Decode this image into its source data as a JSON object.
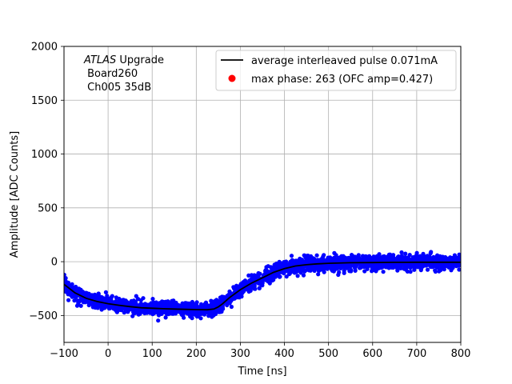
{
  "chart_data": {
    "type": "scatter",
    "xlabel": "Time [ns]",
    "ylabel": "Amplitude [ADC Counts]",
    "xlim": [
      -100,
      800
    ],
    "ylim": [
      -750,
      2000
    ],
    "x_ticks": [
      -100,
      0,
      100,
      200,
      300,
      400,
      500,
      600,
      700,
      800
    ],
    "y_ticks": [
      -500,
      0,
      500,
      1000,
      1500,
      2000
    ],
    "grid": true,
    "legend_placement": "top-right",
    "annotation": {
      "italic": "ATLAS",
      "line1_rest": " Upgrade",
      "line2": " Board260",
      "line3": " Ch005 35dB"
    },
    "series": [
      {
        "name": "average interleaved pulse 0.071mA",
        "kind": "line",
        "color": "#000000",
        "x": [
          -100,
          -75,
          -50,
          -25,
          0,
          25,
          50,
          75,
          100,
          125,
          150,
          175,
          200,
          225,
          240,
          250,
          260,
          275,
          300,
          325,
          350,
          375,
          400,
          425,
          450,
          475,
          500,
          550,
          600,
          650,
          700,
          750,
          800
        ],
        "y": [
          -210,
          -290,
          -340,
          -370,
          -390,
          -405,
          -418,
          -428,
          -433,
          -437,
          -440,
          -443,
          -445,
          -447,
          -440,
          -420,
          -390,
          -335,
          -260,
          -200,
          -150,
          -100,
          -65,
          -40,
          -28,
          -20,
          -15,
          -10,
          -8,
          -6,
          -5,
          -5,
          -5
        ]
      },
      {
        "name": "max phase: 263 (OFC amp=0.427)",
        "kind": "marker",
        "color": "#ff0000"
      },
      {
        "name": "samples",
        "kind": "scatter-band",
        "color": "#0000ff",
        "spread": 60
      }
    ]
  }
}
